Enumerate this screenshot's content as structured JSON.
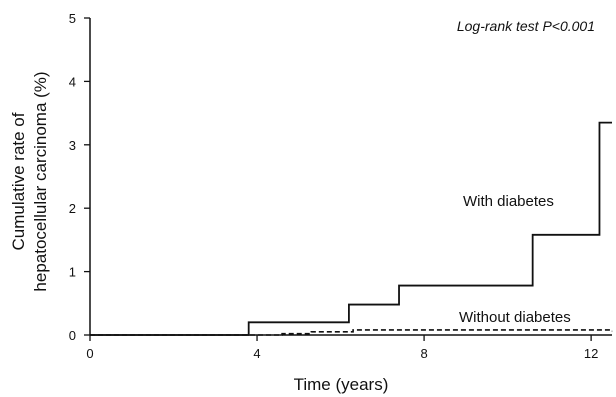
{
  "chart_data": {
    "type": "line",
    "step": true,
    "xlabel": "Time (years)",
    "ylabel_lines": [
      "Cumulative rate of",
      "hepatocellular carcinoma (%)"
    ],
    "xlim": [
      0,
      12.5
    ],
    "ylim": [
      0,
      5
    ],
    "xticks": [
      0,
      4,
      8,
      12
    ],
    "yticks": [
      0,
      1,
      2,
      3,
      4,
      5
    ],
    "grid": false,
    "annotation": "Log-rank test P<0.001",
    "series": [
      {
        "name": "With diabetes",
        "style": "solid",
        "x": [
          0,
          3.8,
          6.2,
          7.4,
          10.6,
          12.2,
          12.5
        ],
        "y": [
          0,
          0.2,
          0.48,
          0.78,
          1.58,
          3.35,
          3.35
        ]
      },
      {
        "name": "Without diabetes",
        "style": "dashed",
        "x": [
          0,
          3.8,
          4.6,
          5.3,
          6.3,
          12.5
        ],
        "y": [
          0,
          0,
          0.02,
          0.05,
          0.08,
          0.06
        ]
      }
    ]
  }
}
